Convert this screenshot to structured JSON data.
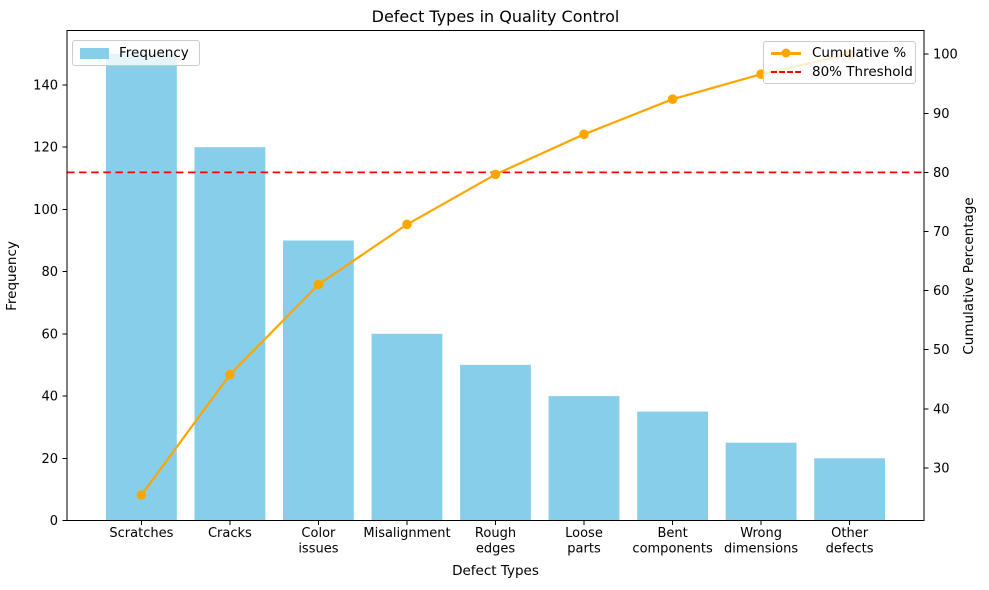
{
  "title": "Defect Types in Quality Control",
  "xlabel": "Defect Types",
  "ylabel_left": "Frequency",
  "ylabel_right": "Cumulative Percentage",
  "legend_left": {
    "frequency_label": "Frequency"
  },
  "legend_right": {
    "cumulative_label": "Cumulative %",
    "threshold_label": "80% Threshold"
  },
  "colors": {
    "bar": "#87CEEB",
    "line": "#FFA500",
    "threshold": "#FF0000",
    "axis": "#000000",
    "text": "#000000",
    "legend_border": "#cccccc"
  },
  "chart_data": {
    "type": "bar",
    "subtype": "pareto (bar + cumulative line, twin y-axes)",
    "title": "Defect Types in Quality Control",
    "xlabel": "Defect Types",
    "ylabel_left": "Frequency",
    "ylabel_right": "Cumulative Percentage",
    "grid": false,
    "categories": [
      "Scratches",
      "Cracks",
      "Color\nissues",
      "Misalignment",
      "Rough\nedges",
      "Loose\nparts",
      "Bent\ncomponents",
      "Wrong\ndimensions",
      "Other\ndefects"
    ],
    "series": [
      {
        "name": "Frequency",
        "type": "bar",
        "axis": "left",
        "values": [
          150,
          120,
          90,
          60,
          50,
          40,
          35,
          25,
          20
        ]
      },
      {
        "name": "Cumulative %",
        "type": "line",
        "axis": "right",
        "values": [
          25.42,
          45.76,
          61.02,
          71.19,
          79.66,
          86.44,
          92.37,
          96.61,
          100.0
        ]
      }
    ],
    "threshold": {
      "label": "80% Threshold",
      "axis": "right",
      "value": 80
    },
    "left_axis": {
      "ticks": [
        0,
        20,
        40,
        60,
        80,
        100,
        120,
        140
      ],
      "lim": [
        0,
        157.5
      ]
    },
    "right_axis": {
      "ticks": [
        30,
        40,
        50,
        60,
        70,
        80,
        90,
        100
      ],
      "lim": [
        21.1,
        104.0
      ]
    },
    "x_lim": [
      -0.84,
      8.84
    ],
    "bar_rel_width": 0.8,
    "legend_positions": {
      "frequency": "upper left",
      "cumulative": "upper right"
    }
  }
}
